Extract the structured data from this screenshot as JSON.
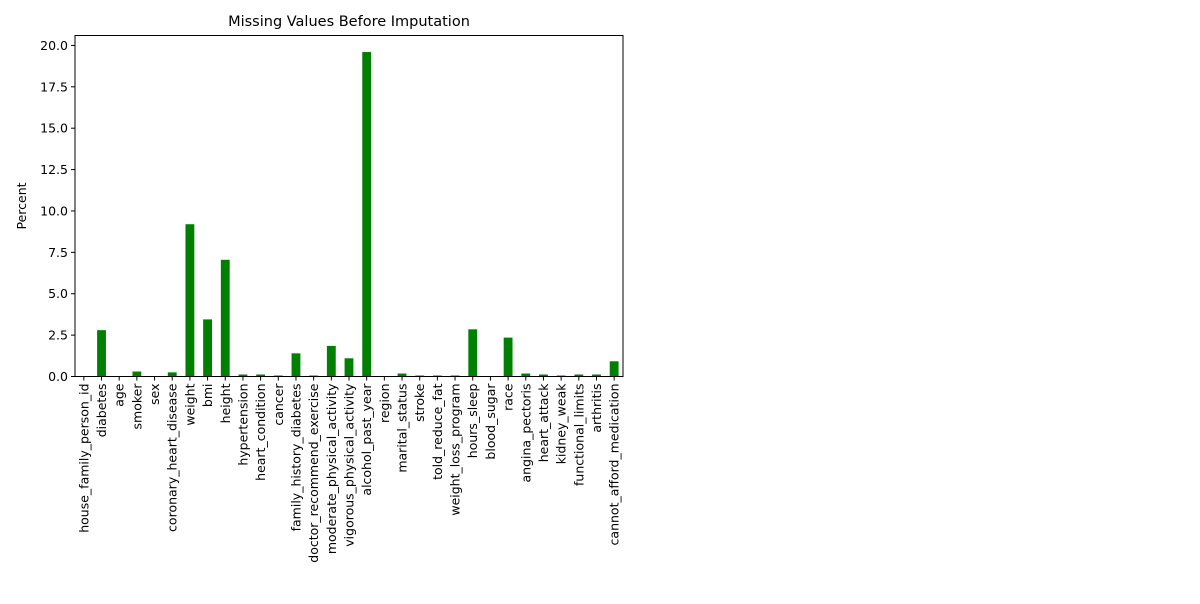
{
  "chart_data": {
    "type": "bar",
    "title": "Missing Values Before Imputation",
    "xlabel": "",
    "ylabel": "Percent",
    "ylim": [
      0,
      20.6
    ],
    "yticks": [
      0.0,
      2.5,
      5.0,
      7.5,
      10.0,
      12.5,
      15.0,
      17.5,
      20.0
    ],
    "ytick_labels": [
      "0.0",
      "2.5",
      "5.0",
      "7.5",
      "10.0",
      "12.5",
      "15.0",
      "17.5",
      "20.0"
    ],
    "grid": false,
    "legend": "none",
    "bar_color": "#008000",
    "categories": [
      "house_family_person_id",
      "diabetes",
      "age",
      "smoker",
      "sex",
      "coronary_heart_disease",
      "weight",
      "bmi",
      "height",
      "hypertension",
      "heart_condition",
      "cancer",
      "family_history_diabetes",
      "doctor_recommend_exercise",
      "moderate_physical_activity",
      "vigorous_physical_activity",
      "alcohol_past_year",
      "region",
      "marital_status",
      "stroke",
      "told_reduce_fat",
      "weight_loss_program",
      "hours_sleep",
      "blood_sugar",
      "race",
      "angina_pectoris",
      "heart_attack",
      "kidney_weak",
      "functional_limits",
      "arthritis",
      "cannot_afford_medication"
    ],
    "values": [
      0.0,
      2.8,
      0.0,
      0.3,
      0.0,
      0.25,
      9.2,
      3.45,
      7.05,
      0.12,
      0.12,
      0.06,
      1.4,
      0.06,
      1.85,
      1.1,
      19.6,
      0.0,
      0.18,
      0.06,
      0.06,
      0.06,
      2.85,
      0.0,
      2.35,
      0.18,
      0.12,
      0.06,
      0.12,
      0.12,
      0.92
    ]
  }
}
